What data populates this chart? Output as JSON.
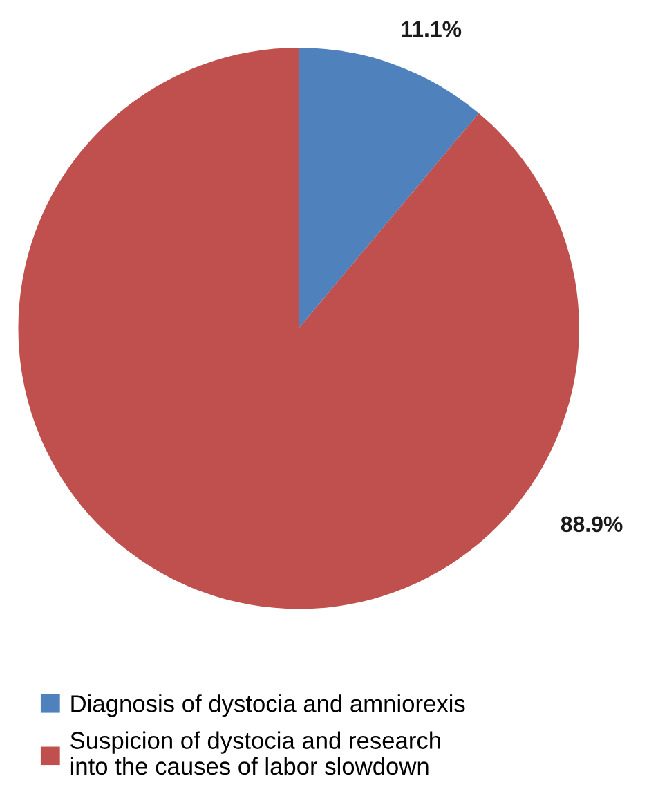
{
  "chart_data": {
    "type": "pie",
    "categories": [
      "Diagnosis of dystocia and amniorexis",
      "Suspicion of dystocia and research into the causes of labor slowdown"
    ],
    "values": [
      11.1,
      88.9
    ],
    "colors": [
      "#4f81bd",
      "#c0504d"
    ],
    "value_labels": [
      "11.1%",
      "88.9%"
    ],
    "legend": "bottom"
  }
}
